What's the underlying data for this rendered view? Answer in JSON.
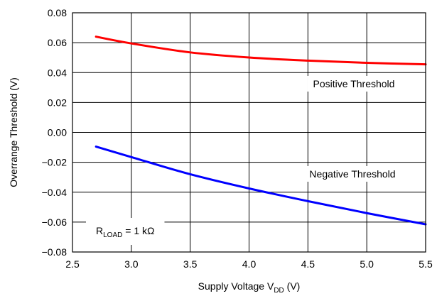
{
  "chart_data": {
    "type": "line",
    "xlabel": {
      "text": "Supply Voltage V",
      "sub": "DD",
      "suffix": " (V)"
    },
    "ylabel": "Overrange Threshold (V)",
    "xlim": [
      2.5,
      5.5
    ],
    "ylim": [
      -0.08,
      0.08
    ],
    "xticks": [
      "2.5",
      "3.0",
      "3.5",
      "4.0",
      "4.5",
      "5.0",
      "5.5"
    ],
    "xtick_values": [
      2.5,
      3.0,
      3.5,
      4.0,
      4.5,
      5.0,
      5.5
    ],
    "yticks": [
      "0.08",
      "0.06",
      "0.04",
      "0.02",
      "0.00",
      "−0.02",
      "−0.04",
      "−0.06",
      "−0.08"
    ],
    "ytick_values": [
      0.08,
      0.06,
      0.04,
      0.02,
      0.0,
      -0.02,
      -0.04,
      -0.06,
      -0.08
    ],
    "grid": true,
    "series": [
      {
        "name": "Positive Threshold",
        "color": "#ff0000",
        "x": [
          2.7,
          3.0,
          3.5,
          4.0,
          4.5,
          5.0,
          5.5
        ],
        "values": [
          0.064,
          0.0595,
          0.0535,
          0.0501,
          0.048,
          0.0465,
          0.0455
        ]
      },
      {
        "name": "Negative Threshold",
        "color": "#0000ff",
        "x": [
          2.7,
          3.0,
          3.5,
          4.0,
          4.5,
          5.0,
          5.5
        ],
        "values": [
          -0.0095,
          -0.0165,
          -0.028,
          -0.0375,
          -0.046,
          -0.054,
          -0.0615
        ]
      }
    ],
    "annotations": [
      {
        "id": "rload",
        "text": "R",
        "sub": "LOAD",
        "suffix": " = 1 kΩ"
      }
    ]
  }
}
